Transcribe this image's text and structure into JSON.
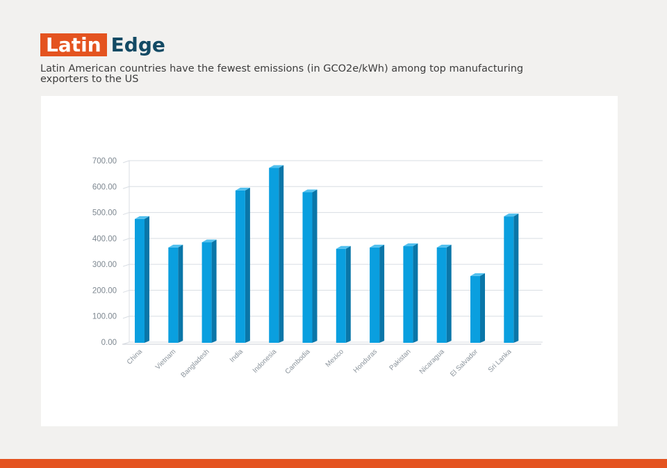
{
  "header": {
    "brand_highlight": "Latin",
    "brand_rest": "Edge",
    "subtitle": "Latin American countries have the fewest emissions (in GCO2e/kWh) among top manufacturing exporters to the US"
  },
  "colors": {
    "brand_orange": "#e4531f",
    "brand_navy": "#134a64",
    "bar_front": "#0a9fdf",
    "bar_side": "#0a76a8",
    "bar_top": "#52c0ee"
  },
  "chart_data": {
    "type": "bar",
    "style": "3d-columns",
    "categories": [
      "China",
      "Vietnam",
      "Bangladesh",
      "India",
      "Indonesia",
      "Cambodia",
      "Mexico",
      "Honduras",
      "Pakistan",
      "Nicaragua",
      "El Salvador",
      "Sri Lanka"
    ],
    "values": [
      475,
      365,
      385,
      585,
      672,
      578,
      360,
      365,
      370,
      365,
      255,
      485
    ],
    "yticks": [
      "0.00",
      "100.00",
      "200.00",
      "300.00",
      "400.00",
      "500.00",
      "600.00",
      "700.00"
    ],
    "ylim": [
      0,
      700
    ],
    "grid": true,
    "legend": "none"
  }
}
